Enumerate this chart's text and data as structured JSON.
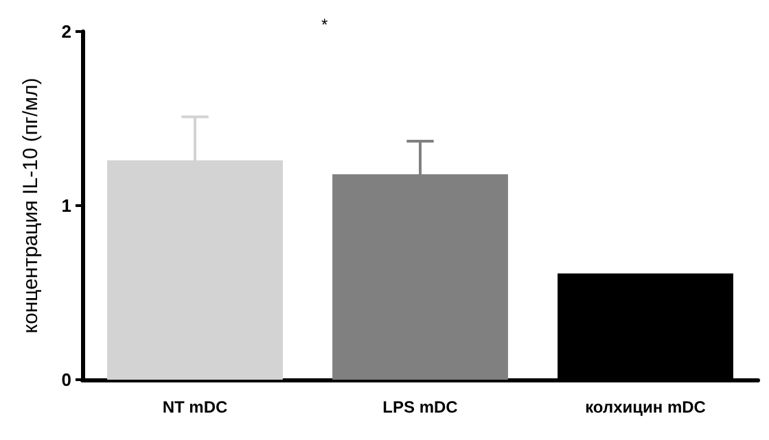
{
  "chart_data": {
    "type": "bar",
    "ylabel": "концентрация IL-10 (пг/мл)",
    "categories": [
      "NT mDC",
      "LPS mDC",
      "колхицин mDC"
    ],
    "values": [
      1.26,
      1.18,
      0.61
    ],
    "colors": [
      "#d3d3d3",
      "#808080",
      "#000000"
    ],
    "errors": [
      0.25,
      0.19,
      null
    ],
    "ylim": [
      0,
      2
    ],
    "yticks": [
      0,
      1,
      2
    ],
    "grid": false,
    "annotations": [
      "*"
    ]
  }
}
